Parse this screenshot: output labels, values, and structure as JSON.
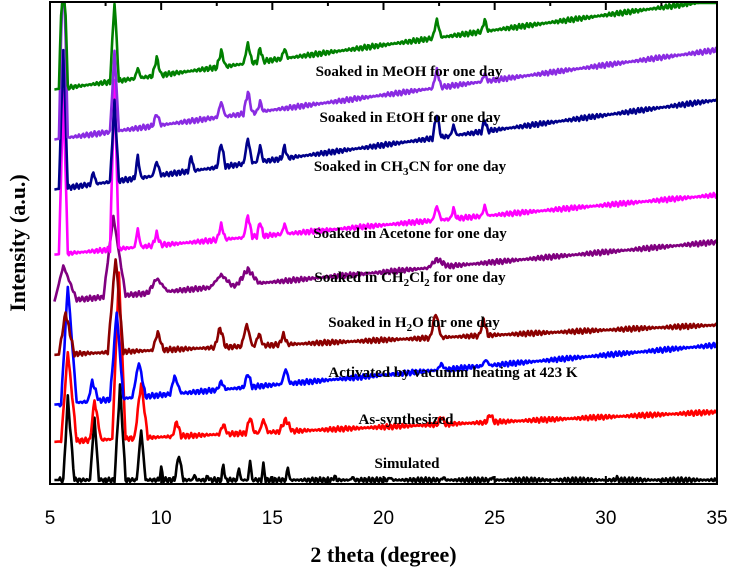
{
  "chart_data": {
    "type": "line",
    "xlabel": "2 theta (degree)",
    "ylabel": "Intensity (a.u.)",
    "xlim": [
      5,
      35
    ],
    "x_ticks": [
      5,
      10,
      15,
      20,
      25,
      30,
      35
    ],
    "x_tick_labels": [
      "5",
      "10",
      "15",
      "20",
      "25",
      "30",
      "35"
    ],
    "grid": false,
    "legend": "none",
    "series": [
      {
        "name": "Simulated",
        "label_parts": [
          {
            "t": "Simulated"
          }
        ],
        "color": "#000000",
        "offset": 0,
        "x": [
          5.6,
          5.8,
          6.1,
          6.8,
          7.0,
          7.2,
          7.9,
          8.15,
          8.4,
          8.9,
          9.1,
          9.3,
          9.9,
          10.0,
          10.1,
          10.6,
          10.8,
          11.0,
          11.4,
          11.5,
          11.6,
          12.0,
          12.1,
          12.2,
          12.7,
          12.8,
          12.9,
          13.4,
          13.5,
          13.6,
          13.9,
          14.0,
          14.1,
          14.5,
          14.6,
          14.7,
          15.6,
          15.7,
          15.8,
          17.7,
          17.8,
          17.9,
          18.5,
          18.6,
          18.7,
          20.2,
          20.3,
          20.4,
          22.6,
          22.7,
          22.8,
          24.8,
          24.9,
          25.0,
          30.4,
          30.5,
          30.6
        ],
        "y": [
          0,
          82,
          0,
          0,
          62,
          0,
          0,
          94,
          0,
          0,
          50,
          0,
          0,
          12,
          0,
          0,
          25,
          0,
          0,
          5,
          0,
          0,
          4,
          0,
          0,
          16,
          0,
          0,
          12,
          0,
          0,
          20,
          0,
          0,
          15,
          0,
          0,
          13,
          0,
          0,
          4,
          0,
          0,
          3,
          0,
          0,
          3,
          0,
          0,
          3,
          0,
          0,
          3,
          0,
          0,
          2,
          0
        ]
      },
      {
        "name": "As-synthesized",
        "label_parts": [
          {
            "t": "As-synthesized"
          }
        ],
        "color": "#ff0000",
        "offset": 38,
        "x": [
          5.5,
          5.8,
          6.2,
          6.8,
          7.0,
          7.3,
          7.8,
          8.1,
          8.4,
          8.8,
          9.1,
          9.4,
          10.5,
          10.7,
          10.9,
          12.6,
          12.8,
          13.0,
          13.8,
          14.0,
          14.2,
          14.4,
          14.6,
          14.8,
          15.3,
          15.6,
          15.9,
          22.4,
          22.6,
          22.8,
          24.6,
          24.8,
          25.0
        ],
        "y": [
          0,
          90,
          0,
          0,
          40,
          0,
          0,
          165,
          0,
          0,
          55,
          0,
          0,
          15,
          0,
          0,
          10,
          0,
          0,
          16,
          0,
          0,
          13,
          0,
          0,
          12,
          0,
          0,
          8,
          0,
          0,
          8,
          0
        ]
      },
      {
        "name": "Activated by vacumm heating at 423 K",
        "label_parts": [
          {
            "t": "Activated by vacumm heating at 423 K"
          }
        ],
        "color": "#0000ff",
        "offset": 75,
        "x": [
          5.5,
          5.8,
          6.2,
          6.7,
          6.9,
          7.2,
          7.7,
          8.0,
          8.3,
          8.7,
          9.0,
          9.3,
          10.4,
          10.6,
          10.9,
          12.5,
          12.7,
          12.9,
          13.7,
          13.9,
          14.1,
          15.4,
          15.6,
          15.8,
          22.4,
          22.6,
          22.8,
          24.4,
          24.6,
          24.8
        ],
        "y": [
          0,
          118,
          0,
          0,
          20,
          0,
          0,
          88,
          0,
          0,
          35,
          0,
          0,
          18,
          0,
          0,
          8,
          0,
          0,
          14,
          0,
          0,
          15,
          0,
          0,
          6,
          0,
          0,
          6,
          0
        ]
      },
      {
        "name": "Soaked in H2O for one day",
        "label_parts": [
          {
            "t": "Soaked in H"
          },
          {
            "t": "2",
            "sub": true
          },
          {
            "t": "O  for one day"
          }
        ],
        "color": "#8b0000",
        "offset": 125,
        "x": [
          5.4,
          5.7,
          6.1,
          7.6,
          7.95,
          8.3,
          9.6,
          9.85,
          10.1,
          12.4,
          12.65,
          12.9,
          13.6,
          13.85,
          14.1,
          14.2,
          14.4,
          14.6,
          15.3,
          15.5,
          15.7,
          22.1,
          22.35,
          22.6,
          24.3,
          24.5,
          24.7
        ],
        "y": [
          0,
          42,
          0,
          0,
          95,
          0,
          0,
          18,
          0,
          0,
          20,
          0,
          0,
          22,
          0,
          0,
          12,
          0,
          0,
          10,
          0,
          0,
          25,
          0,
          0,
          16,
          0
        ]
      },
      {
        "name": "Soaked in CH2Cl2 for one day",
        "label_parts": [
          {
            "t": "Soaked in CH"
          },
          {
            "t": "2",
            "sub": true
          },
          {
            "t": "Cl"
          },
          {
            "t": "2",
            "sub": true
          },
          {
            "t": " for one day"
          }
        ],
        "color": "#800080",
        "offset": 178,
        "x": [
          5.2,
          5.6,
          6.2,
          7.4,
          7.85,
          8.4,
          9.4,
          9.8,
          10.3,
          12.2,
          12.7,
          13.2,
          13.4,
          13.9,
          14.4,
          22.0,
          22.4,
          22.9
        ],
        "y": [
          0,
          35,
          0,
          0,
          80,
          0,
          0,
          14,
          0,
          0,
          12,
          0,
          0,
          15,
          0,
          0,
          8,
          0
        ]
      },
      {
        "name": "Soaked in Acetone for one day",
        "label_parts": [
          {
            "t": "Soaked in Acetone for one day"
          }
        ],
        "color": "#ff00ff",
        "offset": 225,
        "x": [
          5.4,
          5.6,
          5.8,
          7.7,
          7.9,
          8.1,
          8.8,
          8.95,
          9.1,
          9.6,
          9.8,
          10.0,
          12.5,
          12.7,
          12.9,
          13.7,
          13.9,
          14.1,
          14.3,
          14.45,
          14.6,
          15.4,
          15.55,
          15.7,
          22.2,
          22.4,
          22.6,
          23.0,
          23.15,
          23.3,
          24.4,
          24.55,
          24.7
        ],
        "y": [
          0,
          162,
          0,
          0,
          170,
          0,
          0,
          18,
          0,
          0,
          12,
          0,
          0,
          15,
          0,
          0,
          22,
          0,
          0,
          15,
          0,
          0,
          10,
          0,
          0,
          14,
          0,
          0,
          10,
          0,
          0,
          10,
          0
        ]
      },
      {
        "name": "Soaked in CH3CN for one day",
        "label_parts": [
          {
            "t": "Soaked in CH"
          },
          {
            "t": "3",
            "sub": true
          },
          {
            "t": "CN for one day"
          }
        ],
        "color": "#00008b",
        "offset": 290,
        "x": [
          5.4,
          5.6,
          5.8,
          6.8,
          6.95,
          7.1,
          7.7,
          7.9,
          8.1,
          8.8,
          8.95,
          9.1,
          9.6,
          9.8,
          10.0,
          11.2,
          11.35,
          11.5,
          12.5,
          12.7,
          12.9,
          13.7,
          13.9,
          14.1,
          14.3,
          14.45,
          14.6,
          15.4,
          15.55,
          15.7,
          22.2,
          22.4,
          22.6,
          23.0,
          23.15,
          23.3,
          24.4,
          24.55,
          24.7
        ],
        "y": [
          0,
          140,
          0,
          0,
          12,
          0,
          0,
          80,
          0,
          0,
          22,
          0,
          0,
          14,
          0,
          0,
          15,
          0,
          0,
          24,
          0,
          0,
          25,
          0,
          0,
          16,
          0,
          0,
          12,
          0,
          0,
          24,
          0,
          0,
          10,
          0,
          0,
          12,
          0
        ]
      },
      {
        "name": "Soaked in EtOH for one day",
        "label_parts": [
          {
            "t": "Soaked in EtOH for one day"
          }
        ],
        "color": "#8a2be2",
        "offset": 340,
        "x": [
          5.4,
          5.6,
          5.8,
          7.7,
          7.9,
          8.1,
          9.6,
          9.8,
          10.0,
          12.5,
          12.7,
          12.9,
          13.7,
          13.9,
          14.1,
          14.3,
          14.45,
          14.6,
          22.2,
          22.4,
          22.6,
          24.4,
          24.55,
          24.7
        ],
        "y": [
          0,
          200,
          0,
          0,
          80,
          0,
          0,
          12,
          0,
          0,
          15,
          0,
          0,
          22,
          0,
          0,
          10,
          0,
          0,
          18,
          0,
          0,
          8,
          0
        ]
      },
      {
        "name": "Soaked in MeOH for one day",
        "label_parts": [
          {
            "t": "Soaked in MeOH for one day"
          }
        ],
        "color": "#008000",
        "offset": 390,
        "x": [
          5.4,
          5.6,
          5.8,
          7.7,
          7.9,
          8.1,
          8.8,
          8.95,
          9.1,
          9.6,
          9.8,
          10.0,
          12.5,
          12.7,
          12.9,
          13.7,
          13.9,
          14.1,
          14.3,
          14.45,
          14.6,
          15.4,
          15.55,
          15.7,
          22.2,
          22.4,
          22.6,
          24.4,
          24.55,
          24.7
        ],
        "y": [
          0,
          150,
          0,
          0,
          80,
          0,
          0,
          10,
          0,
          0,
          18,
          0,
          0,
          16,
          0,
          0,
          20,
          0,
          0,
          14,
          0,
          0,
          10,
          0,
          0,
          18,
          0,
          0,
          12,
          0
        ]
      }
    ]
  }
}
